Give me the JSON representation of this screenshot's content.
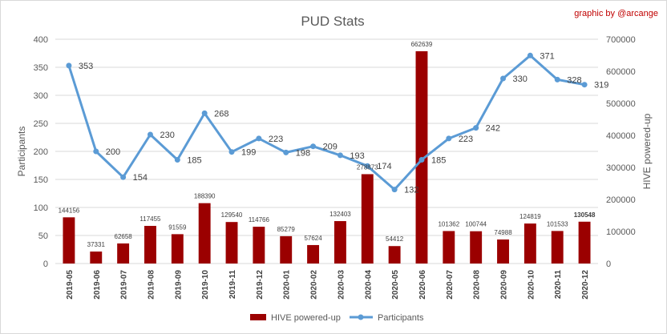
{
  "chart_data": {
    "type": "bar",
    "title": "PUD Stats",
    "credit": "graphic by @arcange",
    "ylabel_left": "Participants",
    "ylabel_right": "HIVE powered-up",
    "ylim_left": [
      0,
      400
    ],
    "yticks_left": [
      0,
      50,
      100,
      150,
      200,
      250,
      300,
      350,
      400
    ],
    "ylim_right": [
      0,
      700000
    ],
    "yticks_right": [
      0,
      100000,
      200000,
      300000,
      400000,
      500000,
      600000,
      700000
    ],
    "grid": true,
    "legend_position": "bottom",
    "categories": [
      "2019-05",
      "2019-06",
      "2019-07",
      "2019-08",
      "2019-09",
      "2019-10",
      "2019-11",
      "2019-12",
      "2020-01",
      "2020-02",
      "2020-03",
      "2020-04",
      "2020-05",
      "2020-06",
      "2020-07",
      "2020-08",
      "2020-09",
      "2020-10",
      "2020-11",
      "2020-12"
    ],
    "series": [
      {
        "name": "HIVE powered-up",
        "type": "bar",
        "axis": "right",
        "color": "#9b0000",
        "values": [
          144156,
          37331,
          62658,
          117455,
          91559,
          188390,
          129540,
          114766,
          85279,
          57624,
          132403,
          278873,
          54412,
          662639,
          101362,
          100744,
          74988,
          124819,
          101533,
          130548
        ],
        "labels": [
          "144156",
          "37331",
          "62658",
          "117455",
          "91559",
          "188390",
          "129540",
          "114766",
          "85279",
          "57624",
          "132403",
          "278873",
          "54412",
          "662639",
          "101362",
          "100744",
          "74988",
          "124819",
          "101533",
          "130548"
        ]
      },
      {
        "name": "Participants",
        "type": "line",
        "axis": "left",
        "color": "#5b9bd5",
        "values": [
          353,
          200,
          154,
          230,
          185,
          268,
          199,
          223,
          198,
          209,
          193,
          174,
          132,
          185,
          223,
          242,
          330,
          371,
          328,
          319
        ],
        "labels": [
          "353",
          "200",
          "154",
          "230",
          "185",
          "268",
          "199",
          "223",
          "198",
          "209",
          "193",
          "174",
          "132",
          "185",
          "223",
          "242",
          "330",
          "371",
          "328",
          "319"
        ]
      }
    ]
  }
}
